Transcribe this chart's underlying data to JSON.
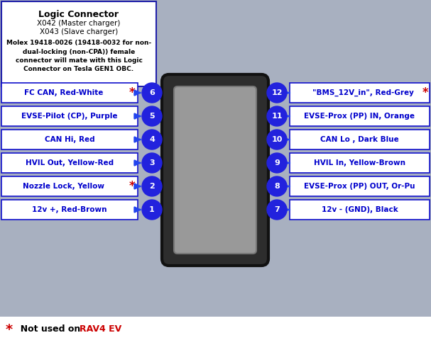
{
  "title": "Logic Connector",
  "subtitle1": "X042 (Master charger)",
  "subtitle2": "X043 (Slave charger)",
  "molex_text": "Molex 19418-0026 (19418-0032 for non-\ndual-locking (non-CPA)) female\nconnector will mate with this Logic\nConnector on Tesla GEN1 OBC.",
  "footnote_star": "*",
  "footnote_text": "  Not used on ",
  "footnote_rav4": "RAV4 EV",
  "bg_color": "#a8b0c0",
  "box_bg": "#ffffff",
  "box_border": "#1111cc",
  "text_color": "#0000cc",
  "star_color": "#cc0000",
  "rav4_color": "#cc0000",
  "pin_circle_color": "#2222dd",
  "pin_text_color": "#ffffff",
  "left_pins": [
    {
      "num": 6,
      "label": "FC CAN, Red-White",
      "star": true
    },
    {
      "num": 5,
      "label": "EVSE-Pilot (CP), Purple",
      "star": false
    },
    {
      "num": 4,
      "label": "CAN Hi, Red",
      "star": false
    },
    {
      "num": 3,
      "label": "HVIL Out, Yellow-Red",
      "star": false
    },
    {
      "num": 2,
      "label": "Nozzle Lock, Yellow",
      "star": true
    },
    {
      "num": 1,
      "label": "12v +, Red-Brown",
      "star": false
    }
  ],
  "right_pins": [
    {
      "num": 12,
      "label": "\"BMS_12V_in\", Red-Grey",
      "star": true
    },
    {
      "num": 11,
      "label": "EVSE-Prox (PP) IN, Orange",
      "star": false
    },
    {
      "num": 10,
      "label": "CAN Lo , Dark Blue",
      "star": false
    },
    {
      "num": 9,
      "label": "HVIL In, Yellow-Brown",
      "star": false
    },
    {
      "num": 8,
      "label": "EVSE-Prox (PP) OUT, Or-Pu",
      "star": false
    },
    {
      "num": 7,
      "label": "12v - (GND), Black",
      "star": false
    }
  ]
}
